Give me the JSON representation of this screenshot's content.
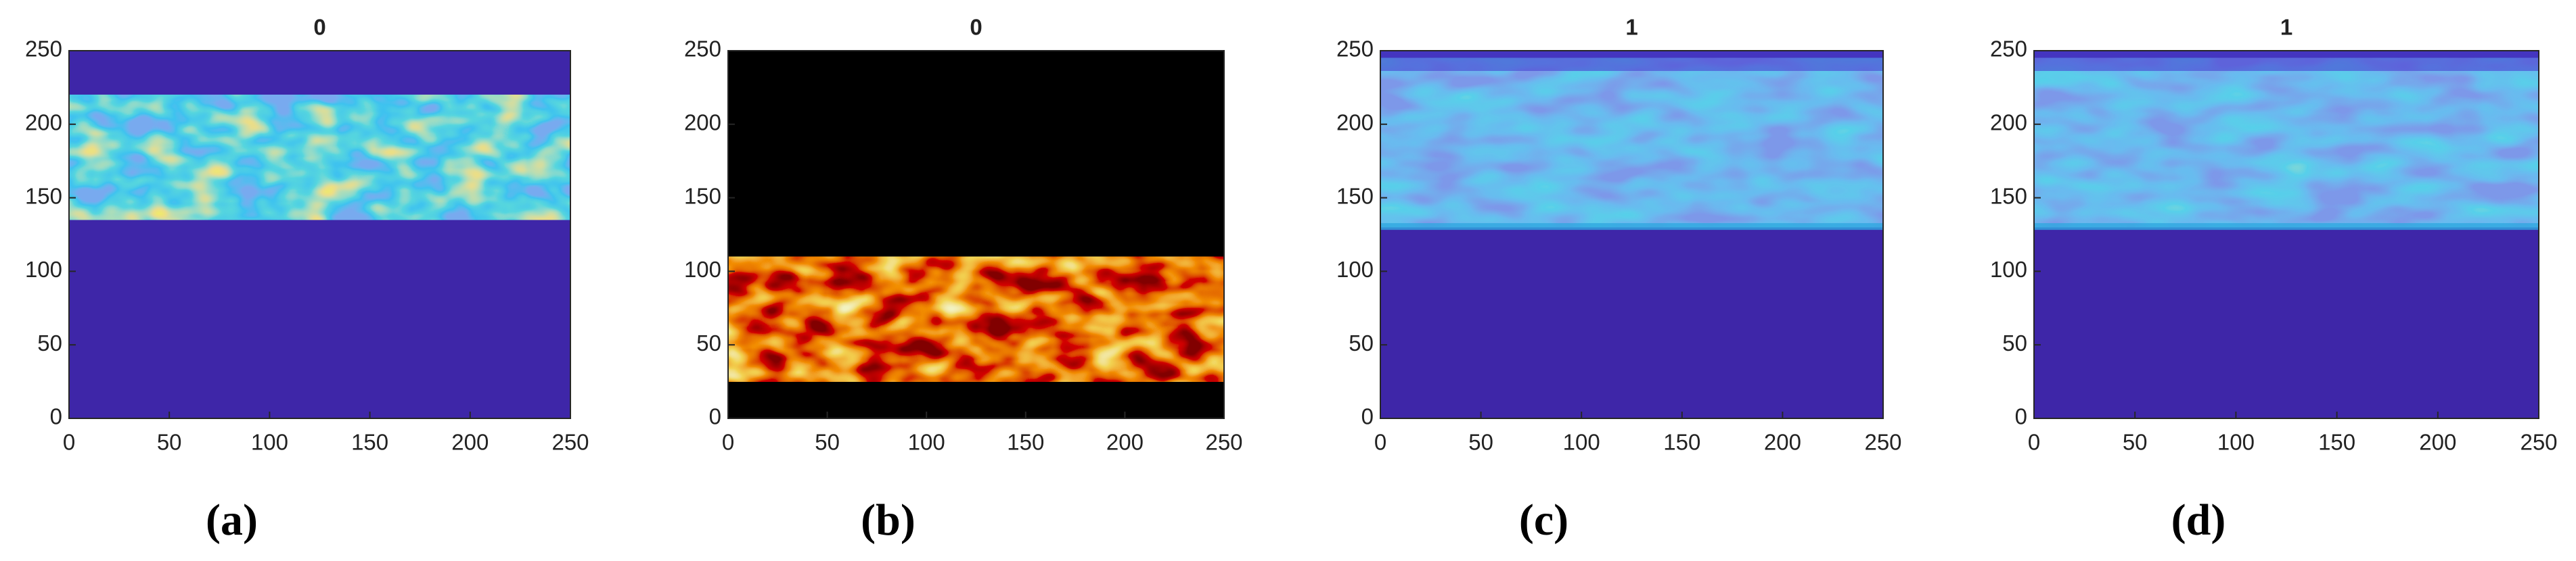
{
  "chart_data": [
    {
      "type": "heatmap",
      "title": "0",
      "label": "(a)",
      "colormap": "parula",
      "xlim": [
        0,
        250
      ],
      "ylim": [
        0,
        250
      ],
      "xticks": [
        0,
        50,
        100,
        150,
        200,
        250
      ],
      "yticks": [
        0,
        50,
        100,
        150,
        200,
        250
      ]
    },
    {
      "type": "heatmap",
      "title": "0",
      "label": "(b)",
      "colormap": "hot",
      "xlim": [
        0,
        250
      ],
      "ylim": [
        0,
        250
      ],
      "xticks": [
        0,
        50,
        100,
        150,
        200,
        250
      ],
      "yticks": [
        0,
        50,
        100,
        150,
        200,
        250
      ]
    },
    {
      "type": "heatmap",
      "title": "1",
      "label": "(c)",
      "colormap": "parula",
      "xlim": [
        0,
        250
      ],
      "ylim": [
        0,
        250
      ],
      "xticks": [
        0,
        50,
        100,
        150,
        200,
        250
      ],
      "yticks": [
        0,
        50,
        100,
        150,
        200,
        250
      ]
    },
    {
      "type": "heatmap",
      "title": "1",
      "label": "(d)",
      "colormap": "parula",
      "xlim": [
        0,
        250
      ],
      "ylim": [
        0,
        250
      ],
      "xticks": [
        0,
        50,
        100,
        150,
        200,
        250
      ],
      "yticks": [
        0,
        50,
        100,
        150,
        200,
        250
      ]
    }
  ]
}
